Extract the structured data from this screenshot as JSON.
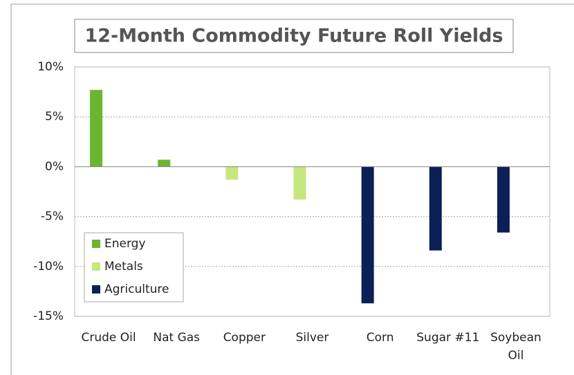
{
  "chart_data": {
    "type": "bar",
    "title": "12-Month Commodity Future Roll Yields",
    "categories": [
      "Crude Oil",
      "Nat Gas",
      "Copper",
      "Silver",
      "Corn",
      "Sugar #11",
      "Soybean Oil"
    ],
    "series": [
      {
        "name": "Energy",
        "color": "#6bb52f",
        "values": [
          7.7,
          0.7,
          null,
          null,
          null,
          null,
          null
        ]
      },
      {
        "name": "Metals",
        "color": "#c6e77d",
        "values": [
          null,
          null,
          -1.3,
          -3.3,
          null,
          null,
          null
        ]
      },
      {
        "name": "Agriculture",
        "color": "#0c1f56",
        "values": [
          null,
          null,
          null,
          null,
          -13.7,
          -8.4,
          -6.6
        ]
      }
    ],
    "ylim": [
      -15,
      10
    ],
    "yticks": [
      {
        "value": -15,
        "label": "-15%"
      },
      {
        "value": -10,
        "label": "-10%"
      },
      {
        "value": -5,
        "label": "-5%"
      },
      {
        "value": 0,
        "label": "0%"
      },
      {
        "value": 5,
        "label": "5%"
      },
      {
        "value": 10,
        "label": "10%"
      }
    ],
    "grid": true,
    "legend": "bottom-left"
  }
}
